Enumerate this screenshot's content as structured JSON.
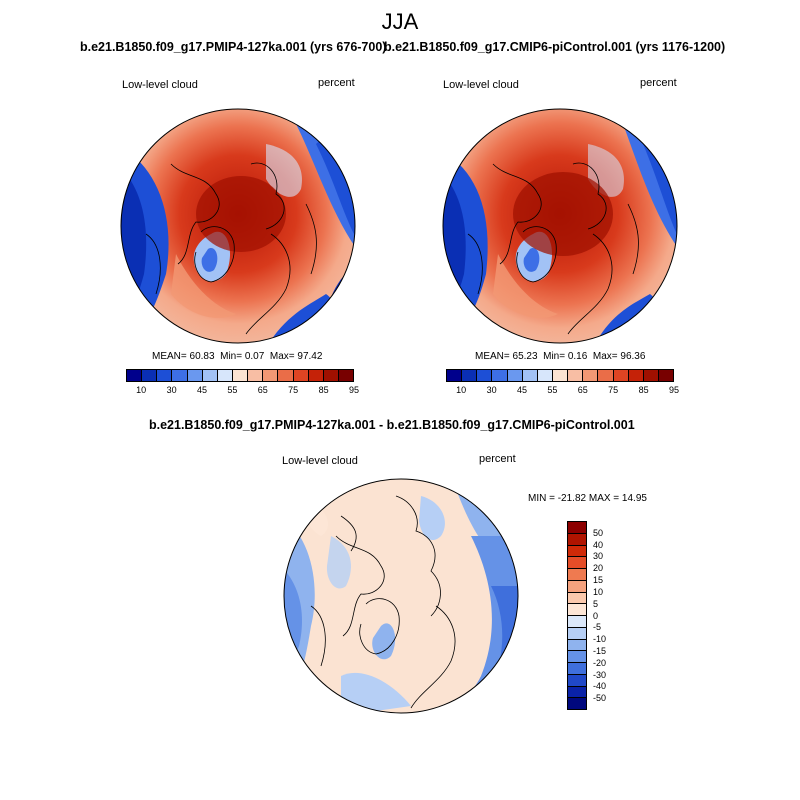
{
  "figure": {
    "title": "JJA"
  },
  "panels": [
    {
      "title": "b.e21.B1850.f09_g17.PMIP4-127ka.001 (yrs 676-700)",
      "left_label": "Low-level cloud",
      "right_label": "percent",
      "stats": {
        "mean_label": "MEAN=",
        "mean": "60.83",
        "min_label": "Min=",
        "min": "0.07",
        "max_label": "Max=",
        "max": "97.42"
      }
    },
    {
      "title": "b.e21.B1850.f09_g17.CMIP6-piControl.001 (yrs 1176-1200)",
      "left_label": "Low-level cloud",
      "right_label": "percent",
      "stats": {
        "mean_label": "MEAN=",
        "mean": "65.23",
        "min_label": "Min=",
        "min": "0.16",
        "max_label": "Max=",
        "max": "96.36"
      }
    }
  ],
  "diff_panel": {
    "title": "b.e21.B1850.f09_g17.PMIP4-127ka.001 - b.e21.B1850.f09_g17.CMIP6-piControl.001",
    "left_label": "Low-level cloud",
    "right_label": "percent",
    "minmax": "MIN = -21.82 MAX =  14.95"
  },
  "colorbars": {
    "absolute": {
      "colors": [
        "#00008c",
        "#0a2fb4",
        "#1d4fd6",
        "#3d6fe6",
        "#6a98ef",
        "#a2c2f5",
        "#d7e6fb",
        "#fbe3d2",
        "#f8bea4",
        "#f29874",
        "#ea6d48",
        "#df4423",
        "#c52208",
        "#a01000",
        "#780000"
      ],
      "tick_labels": [
        "10",
        "30",
        "45",
        "55",
        "65",
        "75",
        "85",
        "95"
      ]
    },
    "difference": {
      "colors_top_to_bottom": [
        "#8c0000",
        "#b01400",
        "#d02a08",
        "#e54d28",
        "#ef7a50",
        "#f5a27e",
        "#fbc9ad",
        "#fde6d6",
        "#dbe8fa",
        "#b6cff5",
        "#8fb3ee",
        "#6592e7",
        "#3f6fdc",
        "#2048c8",
        "#0a22a8",
        "#00087e"
      ],
      "tick_labels": [
        "50",
        "40",
        "30",
        "20",
        "15",
        "10",
        "5",
        "0",
        "-5",
        "-10",
        "-15",
        "-20",
        "-30",
        "-40",
        "-50"
      ]
    }
  },
  "map_fills": {
    "ocean_high": "#c21a05",
    "blue_deep": "#0a2fb4",
    "diff_base": "#fbe3d2",
    "diff_blue": "#8fb3ee"
  }
}
